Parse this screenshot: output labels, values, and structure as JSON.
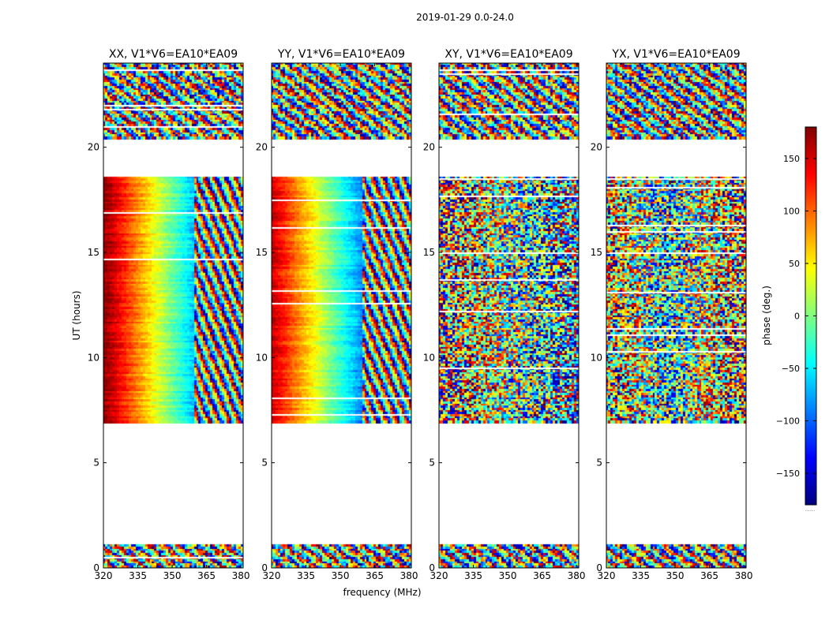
{
  "chart_data": {
    "type": "heatmap",
    "title": "2019-01-29 0.0-24.0",
    "xlabel": "frequency (MHz)",
    "ylabel": "UT (hours)",
    "xlim": [
      320,
      381
    ],
    "ylim": [
      0,
      24
    ],
    "x_ticks": [
      320,
      335,
      350,
      365,
      380
    ],
    "y_ticks": [
      0,
      5,
      10,
      15,
      20
    ],
    "grid": false,
    "panels": [
      {
        "name": "xx",
        "title": "XX, V1*V6=EA10*EA09"
      },
      {
        "name": "yy",
        "title": "YY, V1*V6=EA10*EA09"
      },
      {
        "name": "xy",
        "title": "XY, V1*V6=EA10*EA09"
      },
      {
        "name": "yx",
        "title": "YX, V1*V6=EA10*EA09"
      }
    ],
    "data_ut_ranges": [
      [
        0.0,
        1.1
      ],
      [
        6.9,
        18.6
      ],
      [
        20.4,
        24.0
      ]
    ],
    "colorbar": {
      "label": "phase (deg.)",
      "range": [
        -180,
        180
      ],
      "ticks": [
        -150,
        -100,
        -50,
        0,
        50,
        100,
        150
      ],
      "colormap": "jet",
      "footnote": "....."
    }
  }
}
